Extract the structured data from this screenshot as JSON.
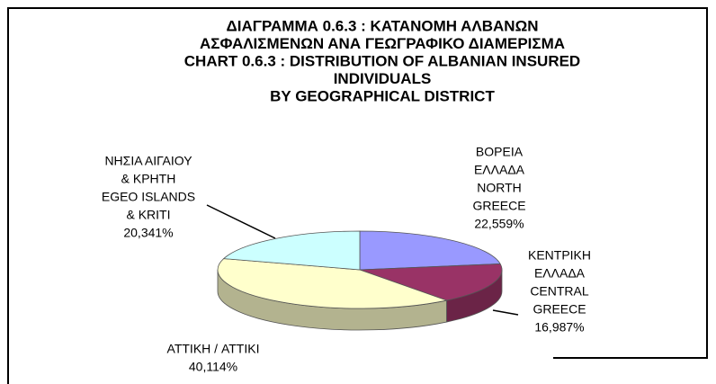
{
  "chart_data": {
    "type": "pie",
    "title": [
      "ΔΙΑΓΡΑΜΜΑ  0.6.3 : ΚΑΤΑΝΟΜΗ ΑΛΒΑΝΩΝ",
      "ΑΣΦΑΛΙΣΜΕΝΩΝ ΑΝΑ ΓΕΩΓΡΑΦΙΚΟ ΔΙΑΜΕΡΙΣΜΑ",
      "CHART 0.6.3 : DISTRIBUTION OF  ALBANIAN  INSURED",
      "INDIVIDUALS",
      "BY GEOGRAPHICAL DISTRICT"
    ],
    "categories": [
      [
        "ΒΟΡΕΙΑ",
        "ΕΛΛΑΔΑ",
        "NORTH",
        "GREECE"
      ],
      [
        "ΚΕΝΤΡΙΚΗ",
        "ΕΛΛΑΔΑ",
        "CENTRAL",
        "GREECE"
      ],
      [
        "ΑΤΤΙΚΗ / ATTIKI"
      ],
      [
        "ΝΗΣΙΑ ΑΙΓΑΙΟΥ",
        "& ΚΡΗΤΗ",
        "EGEO ISLANDS",
        "& KRITI"
      ]
    ],
    "values": [
      22.559,
      16.987,
      40.114,
      20.341
    ],
    "value_labels": [
      "22,559%",
      "16,987%",
      "40,114%",
      "20,341%"
    ],
    "colors": [
      "#9999ff",
      "#993366",
      "#ffffcc",
      "#ccffff"
    ]
  }
}
